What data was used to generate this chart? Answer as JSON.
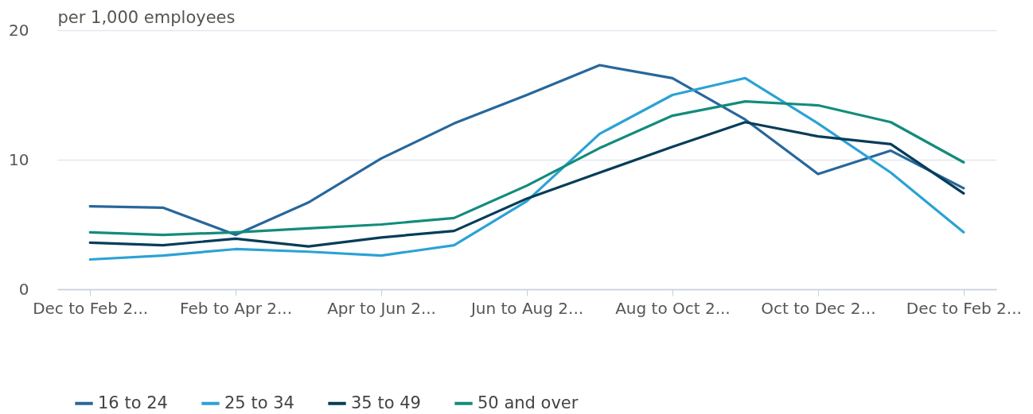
{
  "chart_data": {
    "type": "line",
    "ylabel": "per 1,000 employees",
    "categories": [
      "Dec to Feb 2...",
      null,
      "Feb to Apr 2...",
      null,
      "Apr to Jun 2...",
      null,
      "Jun to Aug 2...",
      null,
      "Aug to Oct 2...",
      null,
      "Oct to Dec 2...",
      null,
      "Dec to Feb 2..."
    ],
    "series": [
      {
        "name": "16 to 24",
        "color": "#28679b",
        "values": [
          6.4,
          6.3,
          4.2,
          6.7,
          10.1,
          12.8,
          15.0,
          17.3,
          16.3,
          13.1,
          8.9,
          10.7,
          7.8
        ]
      },
      {
        "name": "25 to 34",
        "color": "#2ba2d5",
        "values": [
          2.3,
          2.6,
          3.1,
          2.9,
          2.6,
          3.4,
          6.8,
          12.0,
          15.0,
          16.3,
          12.8,
          9.0,
          4.4
        ]
      },
      {
        "name": "35 to 49",
        "color": "#053d58",
        "values": [
          3.6,
          3.4,
          3.9,
          3.3,
          4.0,
          4.5,
          7.0,
          9.0,
          11.0,
          12.9,
          11.8,
          11.2,
          7.4
        ]
      },
      {
        "name": "50 and over",
        "color": "#128c7c",
        "values": [
          4.4,
          4.2,
          4.4,
          4.7,
          5.0,
          5.5,
          8.0,
          10.9,
          13.4,
          14.5,
          14.2,
          12.9,
          9.8
        ]
      }
    ],
    "ylim": [
      0,
      20
    ],
    "yticks": [
      0,
      10,
      20
    ],
    "grid": "y",
    "legend": "bottom",
    "marker": "none",
    "line_style": "solid"
  }
}
